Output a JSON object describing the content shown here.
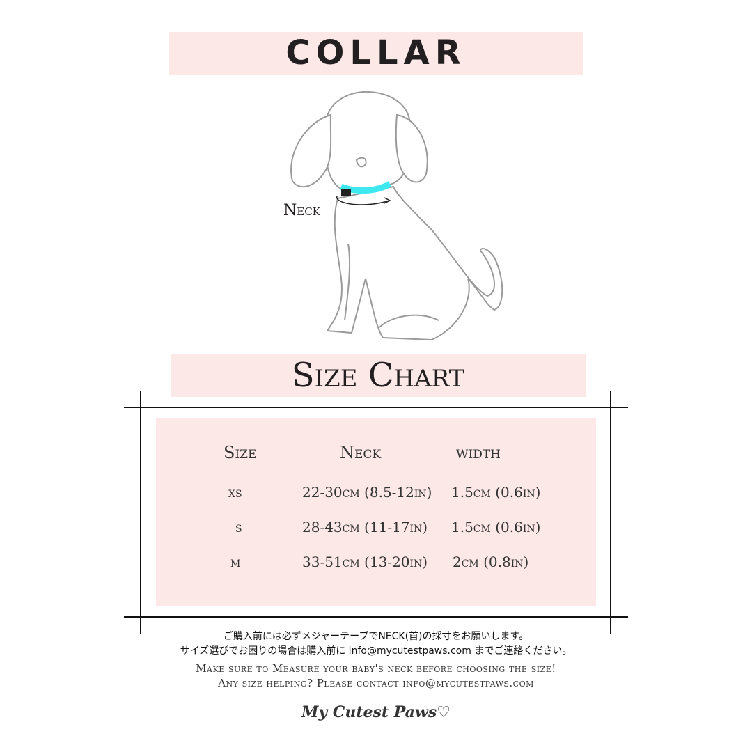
{
  "header": {
    "title": "COLLAR",
    "neck_label": "Neck"
  },
  "chart": {
    "title": "Size Chart"
  },
  "table": {
    "headers": [
      "Size",
      "Neck",
      "width"
    ],
    "rows": [
      {
        "size": "xs",
        "neck": "22-30cm (8.5-12in)",
        "width": "1.5cm (0.6in)"
      },
      {
        "size": "s",
        "neck": "28-43cm (11-17in)",
        "width": "1.5cm (0.6in)"
      },
      {
        "size": "m",
        "neck": "33-51cm (13-20in)",
        "width": "2cm (0.8in)"
      }
    ]
  },
  "notes": {
    "jp_line1": "ご購入前には必ずメジャーテープでNECK(首)の採寸をお願いします。",
    "jp_line2": "サイズ選びでお困りの場合は購入前に info@mycutestpaws.com までご連絡ください。",
    "en_line1": "Make sure to Measure your baby's neck before choosing the size!",
    "en_line2": "Any size helping? Please contact info@mycutestpaws.com"
  },
  "brand": {
    "logo": "My Cutest Paws♡"
  },
  "colors": {
    "band": "#fde8e8",
    "collar": "#3ee8ef",
    "text": "#231f20"
  }
}
